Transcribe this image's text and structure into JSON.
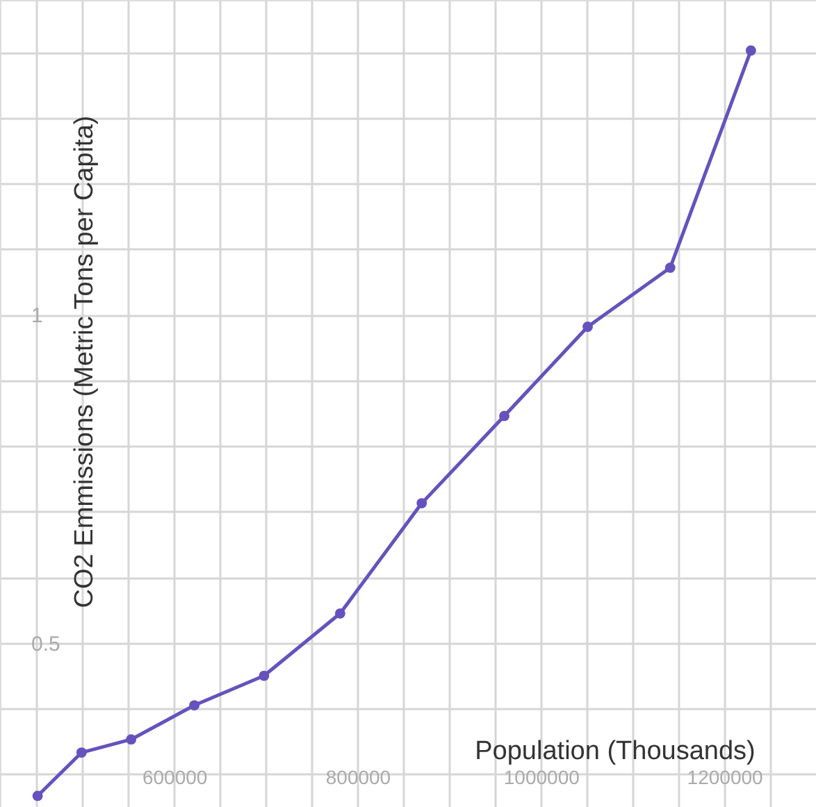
{
  "chart_data": {
    "type": "line",
    "xlabel": "Population (Thousands)",
    "ylabel": "CO2 Emmissions (Metric Tons per Capita)",
    "x": [
      451000,
      499000,
      553000,
      622000,
      698000,
      781000,
      870000,
      960000,
      1051000,
      1141000,
      1229000
    ],
    "series": [
      {
        "color": "#6552bd",
        "values": [
          0.267,
          0.333,
          0.353,
          0.405,
          0.45,
          0.545,
          0.713,
          0.846,
          0.982,
          1.072,
          1.403
        ]
      }
    ],
    "xlim": [
      410000,
      1300000
    ],
    "ylim": [
      0.25,
      1.48
    ],
    "xticks": [
      {
        "value": 450000,
        "label": null
      },
      {
        "value": 500000,
        "label": null
      },
      {
        "value": 550000,
        "label": null
      },
      600000,
      {
        "value": 650000,
        "label": null
      },
      {
        "value": 700000,
        "label": null
      },
      {
        "value": 750000,
        "label": null
      },
      800000,
      {
        "value": 850000,
        "label": null
      },
      {
        "value": 900000,
        "label": null
      },
      {
        "value": 950000,
        "label": null
      },
      1000000,
      {
        "value": 1050000,
        "label": null
      },
      {
        "value": 1100000,
        "label": null
      },
      {
        "value": 1150000,
        "label": null
      },
      1200000,
      {
        "value": 1250000,
        "label": null
      }
    ],
    "yticks": [
      {
        "value": 0.3,
        "label": null
      },
      {
        "value": 0.4,
        "label": null
      },
      0.5,
      {
        "value": 0.6,
        "label": null
      },
      {
        "value": 0.7,
        "label": null
      },
      {
        "value": 0.8,
        "label": null
      },
      {
        "value": 0.9,
        "label": null
      },
      1,
      {
        "value": 1.1,
        "label": null
      },
      {
        "value": 1.2,
        "label": null
      },
      {
        "value": 1.3,
        "label": null
      },
      {
        "value": 1.4,
        "label": null
      }
    ],
    "grid": true,
    "marker": "circle",
    "line_style": "solid"
  }
}
